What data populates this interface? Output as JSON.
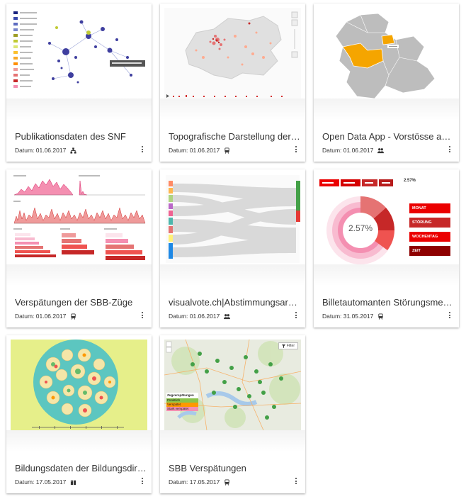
{
  "cards": [
    {
      "title": "Publikationsdaten des SNF",
      "date": "Datum: 01.06.2017",
      "type_icon": "hierarchy-icon"
    },
    {
      "title": "Topografische Darstellung der Tic...",
      "date": "Datum: 01.06.2017",
      "type_icon": "train-icon"
    },
    {
      "title": "Open Data App - Vorstösse aus de...",
      "date": "Datum: 01.06.2017",
      "type_icon": "people-icon"
    },
    {
      "title": "Verspätungen der SBB-Züge",
      "date": "Datum: 01.06.2017",
      "type_icon": "train-icon"
    },
    {
      "title": "visualvote.ch|Abstimmungsarchiv",
      "date": "Datum: 01.06.2017",
      "type_icon": "people-icon"
    },
    {
      "title": "Billetautomanten Störungsmeldun...",
      "date": "Datum: 31.05.2017",
      "type_icon": "train-icon"
    },
    {
      "title": "Bildungsdaten der Bildungsdirekti...",
      "date": "Datum: 17.05.2017",
      "type_icon": "book-icon"
    },
    {
      "title": "SBB Verspätungen",
      "date": "Datum: 17.05.2017",
      "type_icon": "train-icon"
    }
  ],
  "thumb_sunburst": {
    "percent": "2.57%",
    "header_percent": "2.57%",
    "legend": [
      "MONAT",
      "STÖRUNG",
      "WOCHENTAG",
      "ZEIT"
    ]
  },
  "thumb_map": {
    "filter_label": "Filter",
    "legend_title": "Zugverspätungen",
    "legend_items": [
      "Pünktlich",
      "Verspätet",
      "Stark verspätet"
    ]
  },
  "colors": {
    "sbb_red": "#eb0000",
    "accent_orange": "#f5a500",
    "teal": "#5cc6c0"
  }
}
